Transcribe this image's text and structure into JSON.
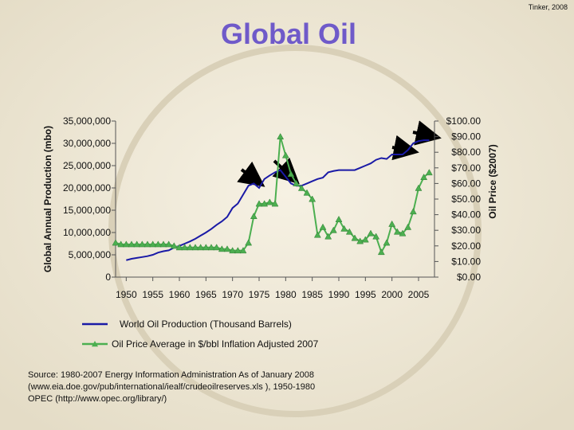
{
  "credit": "Tinker, 2008",
  "chart_data": {
    "type": "line",
    "title": "Global Oil",
    "ylabel": "Global Annual Production (mbo)",
    "y2label": "Oil Price ($2007)",
    "x": [
      1948,
      1949,
      1950,
      1951,
      1952,
      1953,
      1954,
      1955,
      1956,
      1957,
      1958,
      1959,
      1960,
      1961,
      1962,
      1963,
      1964,
      1965,
      1966,
      1967,
      1968,
      1969,
      1970,
      1971,
      1972,
      1973,
      1974,
      1975,
      1976,
      1977,
      1978,
      1979,
      1980,
      1981,
      1982,
      1983,
      1984,
      1985,
      1986,
      1987,
      1988,
      1989,
      1990,
      1991,
      1992,
      1993,
      1994,
      1995,
      1996,
      1997,
      1998,
      1999,
      2000,
      2001,
      2002,
      2003,
      2004,
      2005,
      2006,
      2007
    ],
    "xlim": [
      1948,
      2008
    ],
    "xticks": [
      1950,
      1955,
      1960,
      1965,
      1970,
      1975,
      1980,
      1985,
      1990,
      1995,
      2000,
      2005
    ],
    "ylim": [
      0,
      35000000
    ],
    "yticks": [
      0,
      {
        "value": 5000000,
        "label": "5,000,000"
      },
      {
        "value": 10000000,
        "label": "10,000,000"
      },
      {
        "value": 15000000,
        "label": "15,000,000"
      },
      {
        "value": 20000000,
        "label": "20,000,000"
      },
      {
        "value": 25000000,
        "label": "25,000,000"
      },
      {
        "value": 30000000,
        "label": "30,000,000"
      },
      {
        "value": 35000000,
        "label": "35,000,000"
      }
    ],
    "y2lim": [
      0,
      100
    ],
    "y2ticks": [
      {
        "value": 0,
        "label": "$0.00"
      },
      {
        "value": 10,
        "label": "$10.00"
      },
      {
        "value": 20,
        "label": "$20.00"
      },
      {
        "value": 30,
        "label": "$30.00"
      },
      {
        "value": 40,
        "label": "$40.00"
      },
      {
        "value": 50,
        "label": "$50.00"
      },
      {
        "value": 60,
        "label": "$60.00"
      },
      {
        "value": 70,
        "label": "$70.00"
      },
      {
        "value": 80,
        "label": "$80.00"
      },
      {
        "value": 90,
        "label": "$90.00"
      },
      {
        "value": 100,
        "label": "$100.00"
      }
    ],
    "series": [
      {
        "name": "World Oil Production (Thousand Barrels)",
        "color": "#1a1aa6",
        "marker": "none",
        "values": [
          null,
          null,
          3800000,
          4100000,
          4300000,
          4500000,
          4700000,
          5000000,
          5500000,
          5800000,
          6000000,
          6600000,
          7000000,
          7500000,
          8000000,
          8600000,
          9300000,
          10000000,
          10800000,
          11700000,
          12500000,
          13500000,
          15500000,
          16500000,
          18500000,
          20500000,
          21000000,
          20000000,
          22000000,
          22800000,
          23500000,
          24000000,
          22500000,
          21000000,
          20500000,
          20500000,
          21000000,
          21500000,
          22000000,
          22300000,
          23500000,
          23800000,
          24000000,
          24000000,
          24000000,
          24000000,
          24500000,
          25000000,
          25500000,
          26300000,
          26700000,
          26500000,
          27500000,
          27500000,
          27500000,
          28500000,
          30000000,
          30500000,
          30700000,
          30700000
        ]
      },
      {
        "name": "Oil Price Average in $/bbl Inflation Adjusted 2007",
        "color": "#4caf50",
        "marker": "triangle",
        "axis": "y2",
        "values": [
          22,
          21,
          21,
          21,
          21,
          21,
          21,
          21,
          21,
          21,
          21,
          20,
          19,
          19,
          19,
          19,
          19,
          19,
          19,
          19,
          18,
          18,
          17,
          17,
          17,
          22,
          39,
          47,
          47,
          48,
          47,
          90,
          78,
          66,
          60,
          57,
          54,
          50,
          27,
          32,
          26,
          30,
          37,
          31,
          29,
          25,
          23,
          24,
          28,
          26,
          16,
          22,
          34,
          29,
          28,
          32,
          42,
          57,
          64,
          67
        ]
      }
    ],
    "source": [
      "Source: 1980-2007 Energy Information Administration As of January 2008",
      "(www.eia.doe.gov/pub/international/iealf/crudeoilreserves.xls ), 1950-1980",
      "OPEC  (http://www.opec.org/library/)"
    ]
  }
}
